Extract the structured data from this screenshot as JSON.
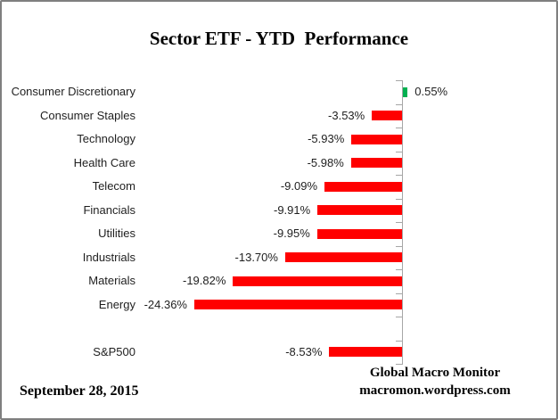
{
  "chart_data": {
    "type": "bar",
    "orientation": "horizontal",
    "title": "Sector ETF - YTD  Performance",
    "categories": [
      "Consumer Discretionary",
      "Consumer Staples",
      "Technology",
      "Health Care",
      "Telecom",
      "Financials",
      "Utilities",
      "Industrials",
      "Materials",
      "Energy",
      "S&P500"
    ],
    "values": [
      0.55,
      -3.53,
      -5.93,
      -5.98,
      -9.09,
      -9.91,
      -9.95,
      -13.7,
      -19.82,
      -24.36,
      -8.53
    ],
    "labels": [
      "0.55%",
      "-3.53%",
      "-5.93%",
      "-5.98%",
      "-9.09%",
      "-9.91%",
      "-9.95%",
      "-13.70%",
      "-19.82%",
      "-24.36%",
      "-8.53%"
    ],
    "spacer_before_category": "S&P500",
    "xlim": [
      -27,
      5
    ],
    "grid": false,
    "legend": false,
    "bar_color_negative": "#FF0000",
    "bar_color_positive": "#00B050",
    "axis_color": "#A6A6A6"
  },
  "footer": {
    "date": "September 28,  2015",
    "source_name": "Global Macro Monitor",
    "source_url": "macromon.wordpress.com"
  }
}
